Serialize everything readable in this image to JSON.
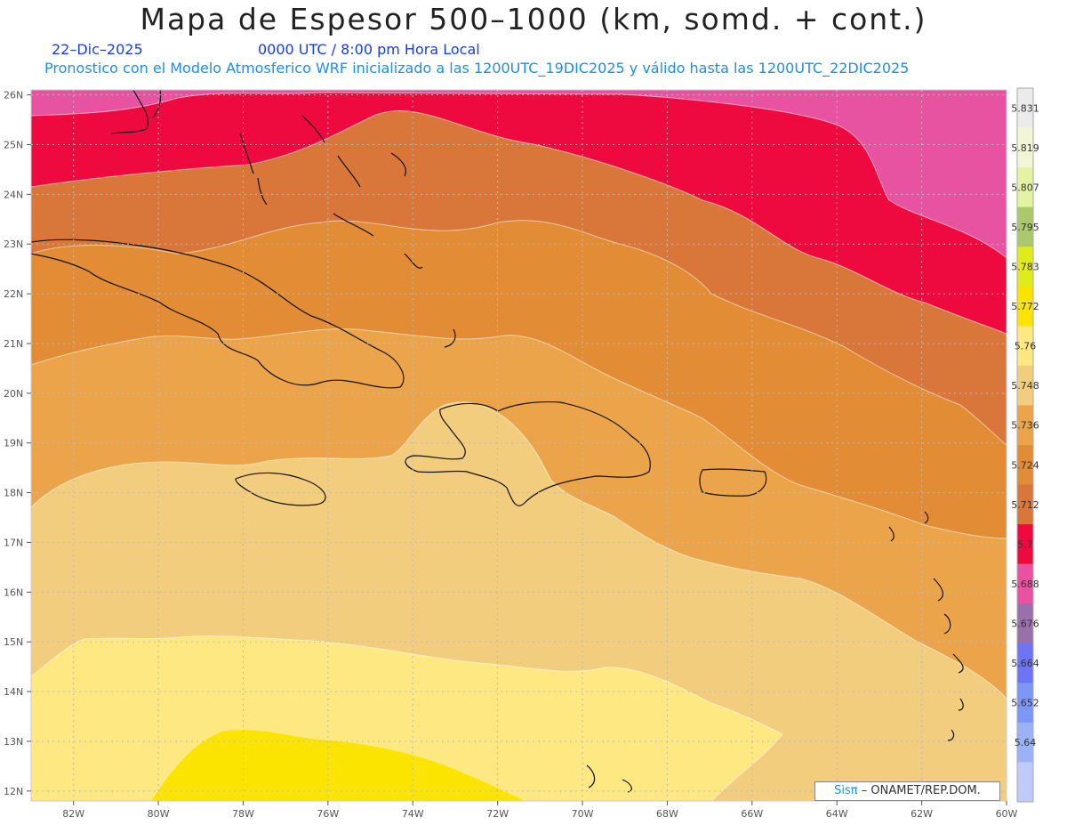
{
  "title": "Mapa de Espesor 500–1000 (km, somd. + cont.)",
  "date_label": "22–Dic–2025",
  "time_label": "0000 UTC / 8:00 pm Hora Local",
  "description": "Pronostico con el Modelo Atmosferico WRF inicializado a las 1200UTC_19DIC2025 y válido hasta las  1200UTC_22DIC2025",
  "credit": {
    "brand": "Sisπ",
    "text": "– ONAMET/REP.DOM."
  },
  "lat_labels": [
    "26N",
    "25N",
    "24N",
    "23N",
    "22N",
    "21N",
    "20N",
    "19N",
    "18N",
    "17N",
    "16N",
    "15N",
    "14N",
    "13N",
    "12N"
  ],
  "lon_labels": [
    "82W",
    "80W",
    "78W",
    "76W",
    "74W",
    "72W",
    "70W",
    "68W",
    "66W",
    "64W",
    "62W",
    "60W"
  ],
  "colorbar": {
    "labels": [
      "5.831",
      "5.819",
      "5.807",
      "5.795",
      "5.783",
      "5.772",
      "5.76",
      "5.748",
      "5.736",
      "5.724",
      "5.712",
      "5.7",
      "5.688",
      "5.676",
      "5.664",
      "5.652",
      "5.64"
    ],
    "colors": [
      "#ebebeb",
      "#f2f6d6",
      "#e4f3a2",
      "#abc96a",
      "#e1ea1a",
      "#fbe500",
      "#fde882",
      "#f3cd7e",
      "#eba449",
      "#e28c36",
      "#d9773a",
      "#ee093f",
      "#e752a1",
      "#9a6fab",
      "#6f73f7",
      "#7d97f8",
      "#9bb2f9",
      "#bfcbfb"
    ]
  },
  "map_colors": {
    "c5688": "#e752a1",
    "c5700": "#ee093f",
    "c5712": "#d9773a",
    "c5724": "#e28c36",
    "c5736": "#eba449",
    "c5748": "#f3cd7e",
    "c5760": "#fde882",
    "c5772": "#fbe500"
  }
}
